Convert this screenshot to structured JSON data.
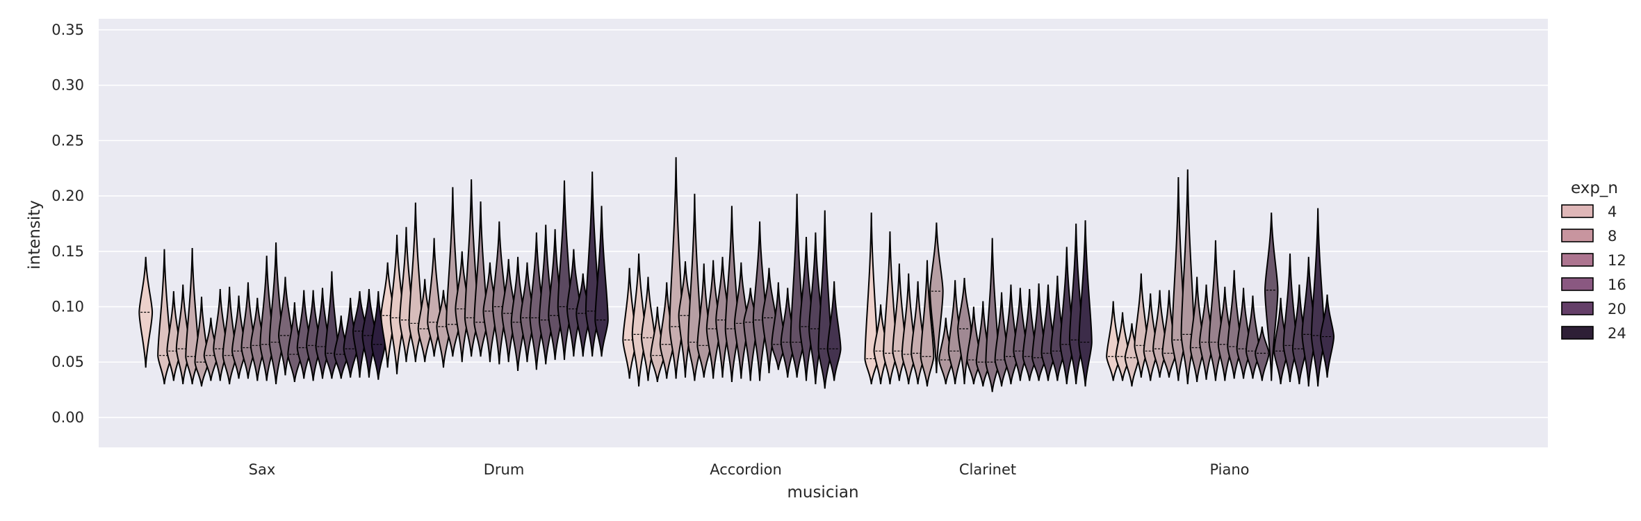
{
  "chart_data": {
    "type": "violin",
    "xlabel": "musician",
    "ylabel": "intensity",
    "ylim": [
      -0.027,
      0.36
    ],
    "yticks": [
      "0.00",
      "0.05",
      "0.10",
      "0.15",
      "0.20",
      "0.25",
      "0.30",
      "0.35"
    ],
    "categories": [
      "Sax",
      "Drum",
      "Accordion",
      "Clarinet",
      "Piano"
    ],
    "grid": true,
    "legend": {
      "title": "exp_n",
      "placement": "right",
      "entries": [
        {
          "label": "4",
          "color": "#dfb7b8"
        },
        {
          "label": "8",
          "color": "#c8959f"
        },
        {
          "label": "12",
          "color": "#ad7590"
        },
        {
          "label": "16",
          "color": "#8a5881"
        },
        {
          "label": "20",
          "color": "#643f68"
        },
        {
          "label": "24",
          "color": "#2e1f36"
        }
      ]
    },
    "colors": {
      "background": "#eaeaf2",
      "grid": "#ffffff",
      "edge": "#000000",
      "ramp_start": "#edd1cb",
      "ramp_end": "#2d1e3e"
    },
    "groups": [
      {
        "category": "Sax",
        "violins": [
          {
            "exp_n": 1,
            "min": 0.045,
            "max": 0.145,
            "median": 0.095
          },
          {
            "exp_n": 3,
            "min": 0.03,
            "max": 0.152,
            "median": 0.056
          },
          {
            "exp_n": 4,
            "min": 0.033,
            "max": 0.114,
            "median": 0.06
          },
          {
            "exp_n": 5,
            "min": 0.03,
            "max": 0.12,
            "median": 0.062
          },
          {
            "exp_n": 6,
            "min": 0.03,
            "max": 0.153,
            "median": 0.055
          },
          {
            "exp_n": 7,
            "min": 0.028,
            "max": 0.109,
            "median": 0.05
          },
          {
            "exp_n": 8,
            "min": 0.033,
            "max": 0.09,
            "median": 0.056
          },
          {
            "exp_n": 9,
            "min": 0.033,
            "max": 0.116,
            "median": 0.062
          },
          {
            "exp_n": 10,
            "min": 0.03,
            "max": 0.118,
            "median": 0.056
          },
          {
            "exp_n": 11,
            "min": 0.035,
            "max": 0.11,
            "median": 0.06
          },
          {
            "exp_n": 12,
            "min": 0.035,
            "max": 0.122,
            "median": 0.063
          },
          {
            "exp_n": 13,
            "min": 0.033,
            "max": 0.108,
            "median": 0.065
          },
          {
            "exp_n": 14,
            "min": 0.033,
            "max": 0.146,
            "median": 0.066
          },
          {
            "exp_n": 15,
            "min": 0.03,
            "max": 0.158,
            "median": 0.068
          },
          {
            "exp_n": 16,
            "min": 0.038,
            "max": 0.127,
            "median": 0.074
          },
          {
            "exp_n": 17,
            "min": 0.032,
            "max": 0.104,
            "median": 0.057
          },
          {
            "exp_n": 18,
            "min": 0.035,
            "max": 0.115,
            "median": 0.063
          },
          {
            "exp_n": 19,
            "min": 0.033,
            "max": 0.115,
            "median": 0.065
          },
          {
            "exp_n": 20,
            "min": 0.035,
            "max": 0.117,
            "median": 0.064
          },
          {
            "exp_n": 21,
            "min": 0.035,
            "max": 0.132,
            "median": 0.058
          },
          {
            "exp_n": 22,
            "min": 0.035,
            "max": 0.092,
            "median": 0.057
          },
          {
            "exp_n": 23,
            "min": 0.036,
            "max": 0.108,
            "median": 0.062
          },
          {
            "exp_n": 24,
            "min": 0.036,
            "max": 0.114,
            "median": 0.078
          },
          {
            "exp_n": 25,
            "min": 0.036,
            "max": 0.116,
            "median": 0.074
          },
          {
            "exp_n": 26,
            "min": 0.034,
            "max": 0.114,
            "median": 0.066
          }
        ]
      },
      {
        "category": "Drum",
        "violins": [
          {
            "exp_n": 1,
            "min": 0.045,
            "max": 0.14,
            "median": 0.092
          },
          {
            "exp_n": 2,
            "min": 0.039,
            "max": 0.165,
            "median": 0.09
          },
          {
            "exp_n": 3,
            "min": 0.05,
            "max": 0.172,
            "median": 0.088
          },
          {
            "exp_n": 4,
            "min": 0.05,
            "max": 0.194,
            "median": 0.085
          },
          {
            "exp_n": 5,
            "min": 0.05,
            "max": 0.125,
            "median": 0.08
          },
          {
            "exp_n": 6,
            "min": 0.055,
            "max": 0.162,
            "median": 0.086
          },
          {
            "exp_n": 7,
            "min": 0.045,
            "max": 0.115,
            "median": 0.082
          },
          {
            "exp_n": 8,
            "min": 0.055,
            "max": 0.208,
            "median": 0.084
          },
          {
            "exp_n": 9,
            "min": 0.05,
            "max": 0.15,
            "median": 0.098
          },
          {
            "exp_n": 10,
            "min": 0.055,
            "max": 0.215,
            "median": 0.09
          },
          {
            "exp_n": 11,
            "min": 0.055,
            "max": 0.195,
            "median": 0.086
          },
          {
            "exp_n": 12,
            "min": 0.05,
            "max": 0.14,
            "median": 0.096
          },
          {
            "exp_n": 13,
            "min": 0.048,
            "max": 0.177,
            "median": 0.1
          },
          {
            "exp_n": 14,
            "min": 0.05,
            "max": 0.143,
            "median": 0.094
          },
          {
            "exp_n": 15,
            "min": 0.042,
            "max": 0.145,
            "median": 0.086
          },
          {
            "exp_n": 16,
            "min": 0.05,
            "max": 0.14,
            "median": 0.09
          },
          {
            "exp_n": 17,
            "min": 0.043,
            "max": 0.167,
            "median": 0.09
          },
          {
            "exp_n": 18,
            "min": 0.048,
            "max": 0.174,
            "median": 0.088
          },
          {
            "exp_n": 19,
            "min": 0.052,
            "max": 0.17,
            "median": 0.092
          },
          {
            "exp_n": 20,
            "min": 0.052,
            "max": 0.214,
            "median": 0.1
          },
          {
            "exp_n": 21,
            "min": 0.055,
            "max": 0.152,
            "median": 0.098
          },
          {
            "exp_n": 22,
            "min": 0.055,
            "max": 0.13,
            "median": 0.094
          },
          {
            "exp_n": 23,
            "min": 0.055,
            "max": 0.222,
            "median": 0.096
          },
          {
            "exp_n": 24,
            "min": 0.055,
            "max": 0.191,
            "median": 0.088
          }
        ]
      },
      {
        "category": "Accordion",
        "violins": [
          {
            "exp_n": 1,
            "min": 0.035,
            "max": 0.135,
            "median": 0.07
          },
          {
            "exp_n": 2,
            "min": 0.028,
            "max": 0.148,
            "median": 0.075
          },
          {
            "exp_n": 3,
            "min": 0.033,
            "max": 0.127,
            "median": 0.072
          },
          {
            "exp_n": 4,
            "min": 0.032,
            "max": 0.1,
            "median": 0.056
          },
          {
            "exp_n": 5,
            "min": 0.035,
            "max": 0.122,
            "median": 0.066
          },
          {
            "exp_n": 6,
            "min": 0.035,
            "max": 0.235,
            "median": 0.082
          },
          {
            "exp_n": 7,
            "min": 0.036,
            "max": 0.141,
            "median": 0.092
          },
          {
            "exp_n": 8,
            "min": 0.033,
            "max": 0.202,
            "median": 0.068
          },
          {
            "exp_n": 9,
            "min": 0.036,
            "max": 0.139,
            "median": 0.065
          },
          {
            "exp_n": 10,
            "min": 0.035,
            "max": 0.142,
            "median": 0.08
          },
          {
            "exp_n": 11,
            "min": 0.036,
            "max": 0.145,
            "median": 0.088
          },
          {
            "exp_n": 12,
            "min": 0.032,
            "max": 0.191,
            "median": 0.08
          },
          {
            "exp_n": 13,
            "min": 0.035,
            "max": 0.14,
            "median": 0.085
          },
          {
            "exp_n": 14,
            "min": 0.033,
            "max": 0.117,
            "median": 0.086
          },
          {
            "exp_n": 15,
            "min": 0.033,
            "max": 0.177,
            "median": 0.088
          },
          {
            "exp_n": 16,
            "min": 0.04,
            "max": 0.135,
            "median": 0.09
          },
          {
            "exp_n": 17,
            "min": 0.043,
            "max": 0.122,
            "median": 0.066
          },
          {
            "exp_n": 18,
            "min": 0.036,
            "max": 0.117,
            "median": 0.068
          },
          {
            "exp_n": 19,
            "min": 0.036,
            "max": 0.202,
            "median": 0.068
          },
          {
            "exp_n": 20,
            "min": 0.033,
            "max": 0.163,
            "median": 0.082
          },
          {
            "exp_n": 21,
            "min": 0.03,
            "max": 0.167,
            "median": 0.08
          },
          {
            "exp_n": 22,
            "min": 0.026,
            "max": 0.187,
            "median": 0.062
          },
          {
            "exp_n": 23,
            "min": 0.033,
            "max": 0.123,
            "median": 0.062
          }
        ]
      },
      {
        "category": "Clarinet",
        "violins": [
          {
            "exp_n": 1,
            "min": 0.03,
            "max": 0.185,
            "median": 0.053
          },
          {
            "exp_n": 2,
            "min": 0.03,
            "max": 0.102,
            "median": 0.06
          },
          {
            "exp_n": 3,
            "min": 0.03,
            "max": 0.168,
            "median": 0.058
          },
          {
            "exp_n": 4,
            "min": 0.033,
            "max": 0.139,
            "median": 0.06
          },
          {
            "exp_n": 5,
            "min": 0.03,
            "max": 0.13,
            "median": 0.057
          },
          {
            "exp_n": 6,
            "min": 0.03,
            "max": 0.123,
            "median": 0.058
          },
          {
            "exp_n": 7,
            "min": 0.028,
            "max": 0.142,
            "median": 0.055
          },
          {
            "exp_n": 8,
            "min": 0.04,
            "max": 0.176,
            "median": 0.114
          },
          {
            "exp_n": 9,
            "min": 0.03,
            "max": 0.09,
            "median": 0.052
          },
          {
            "exp_n": 10,
            "min": 0.03,
            "max": 0.124,
            "median": 0.06
          },
          {
            "exp_n": 11,
            "min": 0.03,
            "max": 0.126,
            "median": 0.08
          },
          {
            "exp_n": 12,
            "min": 0.03,
            "max": 0.1,
            "median": 0.052
          },
          {
            "exp_n": 13,
            "min": 0.028,
            "max": 0.105,
            "median": 0.05
          },
          {
            "exp_n": 14,
            "min": 0.023,
            "max": 0.162,
            "median": 0.05
          },
          {
            "exp_n": 15,
            "min": 0.028,
            "max": 0.113,
            "median": 0.052
          },
          {
            "exp_n": 16,
            "min": 0.03,
            "max": 0.12,
            "median": 0.055
          },
          {
            "exp_n": 17,
            "min": 0.033,
            "max": 0.117,
            "median": 0.06
          },
          {
            "exp_n": 18,
            "min": 0.033,
            "max": 0.116,
            "median": 0.055
          },
          {
            "exp_n": 19,
            "min": 0.033,
            "max": 0.121,
            "median": 0.054
          },
          {
            "exp_n": 20,
            "min": 0.033,
            "max": 0.12,
            "median": 0.058
          },
          {
            "exp_n": 21,
            "min": 0.033,
            "max": 0.128,
            "median": 0.06
          },
          {
            "exp_n": 22,
            "min": 0.03,
            "max": 0.154,
            "median": 0.066
          },
          {
            "exp_n": 23,
            "min": 0.03,
            "max": 0.175,
            "median": 0.07
          },
          {
            "exp_n": 24,
            "min": 0.028,
            "max": 0.178,
            "median": 0.068
          }
        ]
      },
      {
        "category": "Piano",
        "violins": [
          {
            "exp_n": 1,
            "min": 0.033,
            "max": 0.105,
            "median": 0.055
          },
          {
            "exp_n": 2,
            "min": 0.033,
            "max": 0.095,
            "median": 0.055
          },
          {
            "exp_n": 3,
            "min": 0.028,
            "max": 0.085,
            "median": 0.054
          },
          {
            "exp_n": 4,
            "min": 0.036,
            "max": 0.13,
            "median": 0.065
          },
          {
            "exp_n": 5,
            "min": 0.033,
            "max": 0.112,
            "median": 0.06
          },
          {
            "exp_n": 6,
            "min": 0.036,
            "max": 0.115,
            "median": 0.062
          },
          {
            "exp_n": 7,
            "min": 0.036,
            "max": 0.115,
            "median": 0.058
          },
          {
            "exp_n": 8,
            "min": 0.033,
            "max": 0.217,
            "median": 0.07
          },
          {
            "exp_n": 9,
            "min": 0.03,
            "max": 0.224,
            "median": 0.075
          },
          {
            "exp_n": 10,
            "min": 0.032,
            "max": 0.127,
            "median": 0.063
          },
          {
            "exp_n": 11,
            "min": 0.034,
            "max": 0.12,
            "median": 0.068
          },
          {
            "exp_n": 12,
            "min": 0.033,
            "max": 0.16,
            "median": 0.068
          },
          {
            "exp_n": 13,
            "min": 0.033,
            "max": 0.118,
            "median": 0.066
          },
          {
            "exp_n": 14,
            "min": 0.035,
            "max": 0.133,
            "median": 0.064
          },
          {
            "exp_n": 15,
            "min": 0.035,
            "max": 0.117,
            "median": 0.062
          },
          {
            "exp_n": 16,
            "min": 0.035,
            "max": 0.11,
            "median": 0.06
          },
          {
            "exp_n": 17,
            "min": 0.033,
            "max": 0.082,
            "median": 0.058
          },
          {
            "exp_n": 18,
            "min": 0.033,
            "max": 0.185,
            "median": 0.115
          },
          {
            "exp_n": 19,
            "min": 0.03,
            "max": 0.108,
            "median": 0.06
          },
          {
            "exp_n": 20,
            "min": 0.032,
            "max": 0.148,
            "median": 0.065
          },
          {
            "exp_n": 21,
            "min": 0.03,
            "max": 0.12,
            "median": 0.062
          },
          {
            "exp_n": 22,
            "min": 0.028,
            "max": 0.145,
            "median": 0.075
          },
          {
            "exp_n": 23,
            "min": 0.028,
            "max": 0.189,
            "median": 0.074
          },
          {
            "exp_n": 24,
            "min": 0.036,
            "max": 0.111,
            "median": 0.073
          }
        ]
      }
    ]
  }
}
